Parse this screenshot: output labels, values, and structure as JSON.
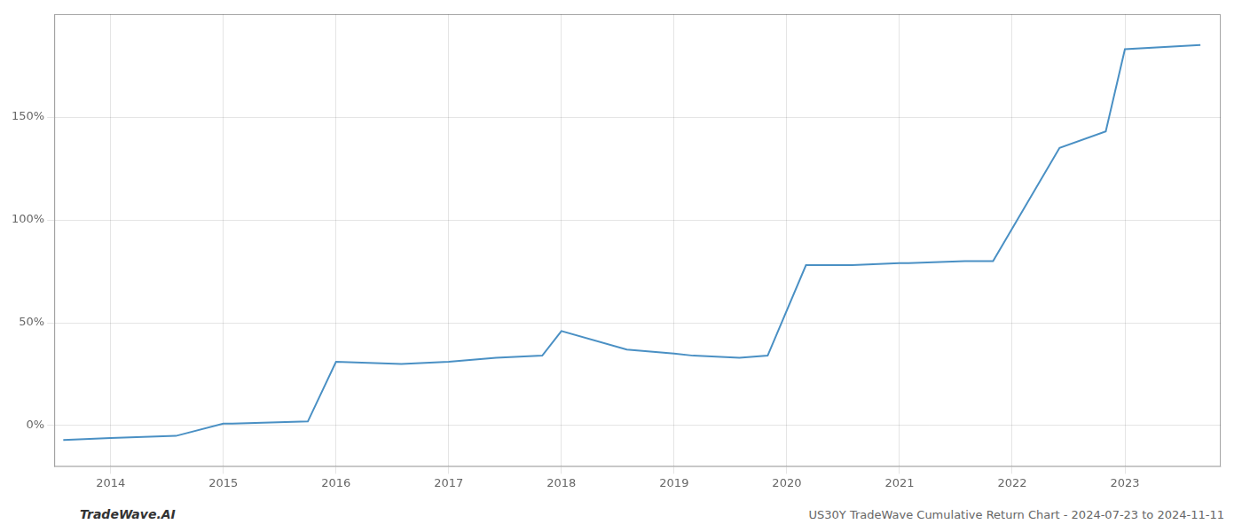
{
  "chart_data": {
    "type": "line",
    "title": "US30Y TradeWave Cumulative Return Chart - 2024-07-23 to 2024-11-11",
    "annotations": [
      "TradeWave.AI"
    ],
    "x": [
      2013.58,
      2014.0,
      2014.58,
      2015.0,
      2015.08,
      2015.75,
      2016.0,
      2016.58,
      2017.0,
      2017.42,
      2017.83,
      2018.0,
      2018.58,
      2019.0,
      2019.17,
      2019.58,
      2019.83,
      2020.17,
      2020.58,
      2021.0,
      2021.08,
      2021.58,
      2021.83,
      2022.42,
      2022.83,
      2023.0,
      2023.67
    ],
    "values": [
      -7,
      -6,
      -5,
      1,
      1,
      2,
      31,
      30,
      31,
      33,
      34,
      46,
      37,
      35,
      34,
      33,
      34,
      78,
      78,
      79,
      79,
      80,
      80,
      135,
      143,
      183,
      185
    ],
    "color": "#4a90c4",
    "xlim": [
      2013.5,
      2023.85
    ],
    "xticks": [
      2014,
      2015,
      2016,
      2017,
      2018,
      2019,
      2020,
      2021,
      2022,
      2023
    ],
    "ylim": [
      -20,
      200
    ],
    "yticks": [
      {
        "value": 0,
        "label": "0%"
      },
      {
        "value": 50,
        "label": "50%"
      },
      {
        "value": 100,
        "label": "100%"
      },
      {
        "value": 150,
        "label": "150%"
      }
    ],
    "grid": true
  }
}
